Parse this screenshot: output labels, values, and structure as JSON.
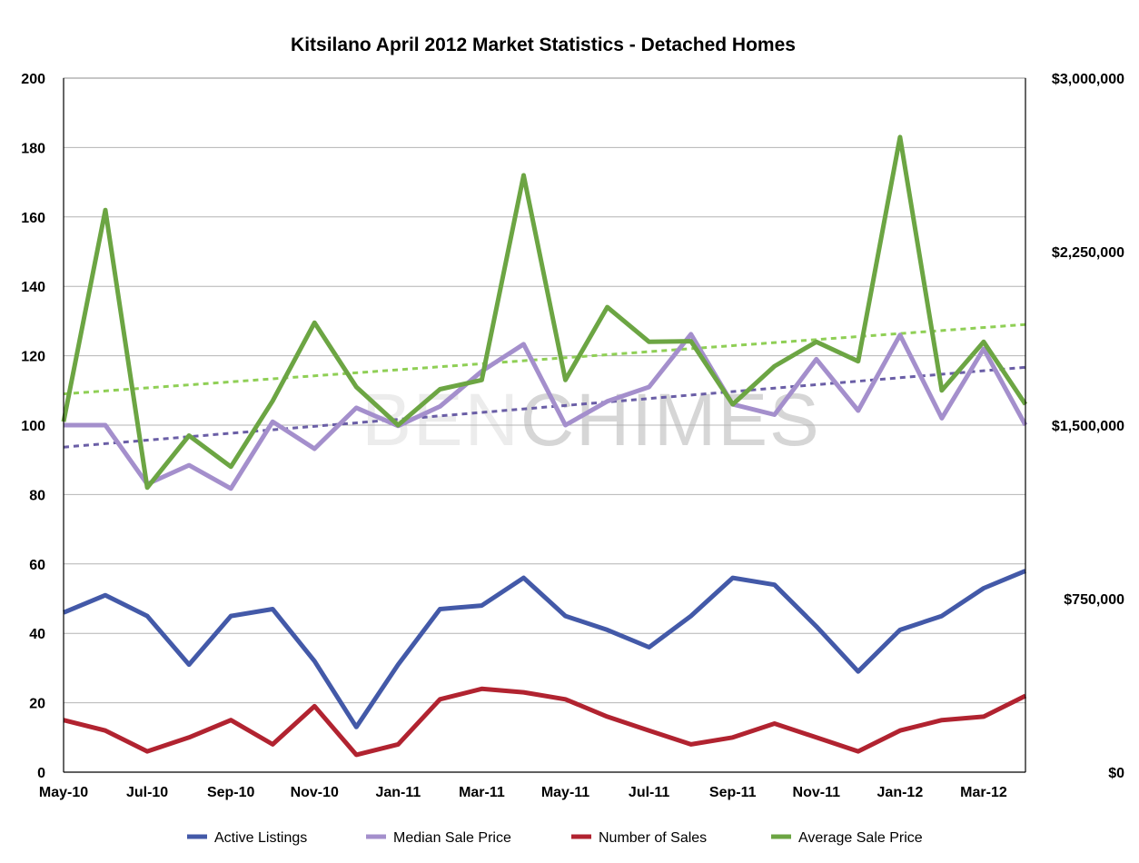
{
  "chart_data": {
    "type": "line",
    "title": "Kitsilano April 2012 Market Statistics - Detached Homes",
    "watermark": {
      "light": "BEN",
      "dark": "CHIMES"
    },
    "x": [
      "May-10",
      "Jun-10",
      "Jul-10",
      "Aug-10",
      "Sep-10",
      "Oct-10",
      "Nov-10",
      "Dec-10",
      "Jan-11",
      "Feb-11",
      "Mar-11",
      "Apr-11",
      "May-11",
      "Jun-11",
      "Jul-11",
      "Aug-11",
      "Sep-11",
      "Oct-11",
      "Nov-11",
      "Dec-11",
      "Jan-12",
      "Feb-12",
      "Mar-12",
      "Apr-12"
    ],
    "x_tick_labels": [
      "May-10",
      "Jul-10",
      "Sep-10",
      "Nov-10",
      "Jan-11",
      "Mar-11",
      "May-11",
      "Jul-11",
      "Sep-11",
      "Nov-11",
      "Jan-12",
      "Mar-12"
    ],
    "y_left": {
      "ylim": [
        0,
        200
      ],
      "ticks": [
        "0",
        "20",
        "40",
        "60",
        "80",
        "100",
        "120",
        "140",
        "160",
        "180",
        "200"
      ]
    },
    "y_right": {
      "ylim": [
        0,
        3000000
      ],
      "ticks": [
        "$0",
        "$750,000",
        "$1,500,000",
        "$2,250,000",
        "$3,000,000"
      ]
    },
    "grid": true,
    "legend_position": "bottom",
    "series": [
      {
        "name": "Active Listings",
        "axis": "left",
        "color": "#4359a8",
        "values": [
          46,
          51,
          45,
          31,
          45,
          47,
          32,
          13,
          31,
          47,
          48,
          56,
          45,
          41,
          36,
          45,
          56,
          54,
          42,
          29,
          41,
          45,
          53,
          58
        ]
      },
      {
        "name": "Median Sale Price",
        "axis": "right",
        "color": "#a48fcc",
        "values": [
          1500000,
          1500000,
          1245000,
          1327000,
          1226000,
          1515000,
          1398000,
          1575000,
          1497000,
          1581000,
          1733000,
          1850000,
          1500000,
          1603000,
          1665000,
          1893000,
          1590000,
          1545000,
          1785000,
          1563000,
          1890000,
          1530000,
          1830000,
          1500000
        ]
      },
      {
        "name": "Number of Sales",
        "axis": "left",
        "color": "#b12330",
        "values": [
          15,
          12,
          6,
          10,
          15,
          8,
          19,
          5,
          8,
          21,
          24,
          23,
          21,
          16,
          12,
          8,
          10,
          14,
          10,
          6,
          12,
          15,
          16,
          22
        ]
      },
      {
        "name": "Average Sale Price",
        "axis": "right",
        "color": "#6ca543",
        "values": [
          1515000,
          2430000,
          1230000,
          1455000,
          1320000,
          1605000,
          1943000,
          1665000,
          1500000,
          1655000,
          1695000,
          2580000,
          1695000,
          2010000,
          1860000,
          1863000,
          1590000,
          1755000,
          1860000,
          1776000,
          2745000,
          1650000,
          1860000,
          1590000
        ]
      }
    ],
    "trendlines": [
      {
        "of": "Median Sale Price",
        "color": "#6a5ea6",
        "start": 1405000,
        "end": 1750000
      },
      {
        "of": "Average Sale Price",
        "color": "#8fcf55",
        "start": 1635000,
        "end": 1935000
      }
    ]
  }
}
